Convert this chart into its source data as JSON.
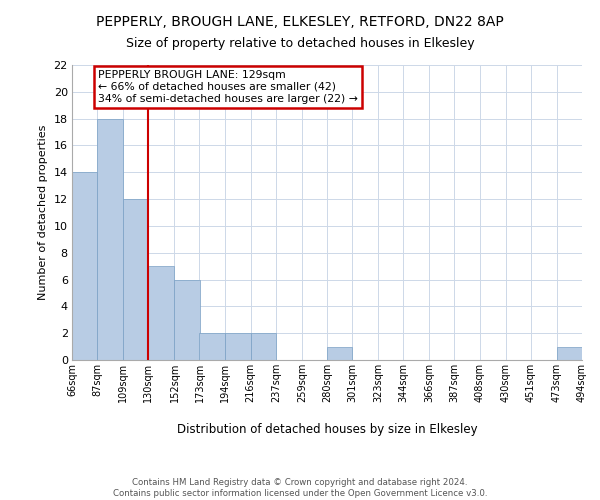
{
  "title": "PEPPERLY, BROUGH LANE, ELKESLEY, RETFORD, DN22 8AP",
  "subtitle": "Size of property relative to detached houses in Elkesley",
  "xlabel": "Distribution of detached houses by size in Elkesley",
  "ylabel": "Number of detached properties",
  "bin_edges": [
    66,
    87,
    109,
    130,
    152,
    173,
    194,
    216,
    237,
    259,
    280,
    301,
    323,
    344,
    366,
    387,
    408,
    430,
    451,
    473,
    494
  ],
  "bin_labels": [
    "66sqm",
    "87sqm",
    "109sqm",
    "130sqm",
    "152sqm",
    "173sqm",
    "194sqm",
    "216sqm",
    "237sqm",
    "259sqm",
    "280sqm",
    "301sqm",
    "323sqm",
    "344sqm",
    "366sqm",
    "387sqm",
    "408sqm",
    "430sqm",
    "451sqm",
    "473sqm",
    "494sqm"
  ],
  "counts": [
    14,
    18,
    12,
    7,
    6,
    2,
    2,
    2,
    0,
    0,
    1,
    0,
    0,
    0,
    0,
    0,
    0,
    0,
    0,
    1
  ],
  "bar_color": "#b8cce4",
  "reference_line_x": 130,
  "reference_line_color": "#cc0000",
  "annotation_line1": "PEPPERLY BROUGH LANE: 129sqm",
  "annotation_line2": "← 66% of detached houses are smaller (42)",
  "annotation_line3": "34% of semi-detached houses are larger (22) →",
  "annotation_box_edge_color": "#cc0000",
  "ylim": [
    0,
    22
  ],
  "yticks": [
    0,
    2,
    4,
    6,
    8,
    10,
    12,
    14,
    16,
    18,
    20,
    22
  ],
  "background_color": "#ffffff",
  "grid_color": "#cdd8e8",
  "title_fontsize": 10,
  "subtitle_fontsize": 9,
  "footer_text": "Contains HM Land Registry data © Crown copyright and database right 2024.\nContains public sector information licensed under the Open Government Licence v3.0."
}
